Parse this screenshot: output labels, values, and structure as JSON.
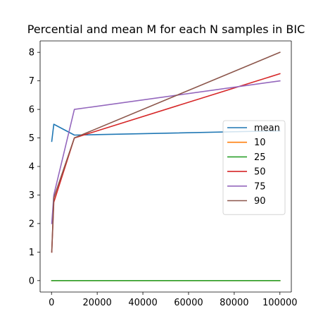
{
  "chart_data": {
    "type": "line",
    "title": "Percential and mean M for each N samples in BIC",
    "xlabel": "",
    "ylabel": "",
    "xlim": [
      -5000,
      105000
    ],
    "ylim": [
      -0.4,
      8.4
    ],
    "xticks": [
      0,
      20000,
      40000,
      60000,
      80000,
      100000
    ],
    "xtick_labels": [
      "0",
      "20000",
      "40000",
      "60000",
      "80000",
      "100000"
    ],
    "yticks": [
      0,
      1,
      2,
      3,
      4,
      5,
      6,
      7,
      8
    ],
    "ytick_labels": [
      "0",
      "1",
      "2",
      "3",
      "4",
      "5",
      "6",
      "7",
      "8"
    ],
    "grid": false,
    "legend_position": "center-right",
    "x": [
      100,
      1000,
      10000,
      100000
    ],
    "series": [
      {
        "name": "mean",
        "color": "#1f77b4",
        "values": [
          4.88,
          5.48,
          5.1,
          5.25
        ]
      },
      {
        "name": "10",
        "color": "#ff7f0e",
        "values": [
          0,
          0,
          0,
          0
        ]
      },
      {
        "name": "25",
        "color": "#2ca02c",
        "values": [
          0,
          0,
          0,
          0
        ]
      },
      {
        "name": "50",
        "color": "#d62728",
        "values": [
          1,
          2.75,
          5,
          7.25
        ]
      },
      {
        "name": "75",
        "color": "#9467bd",
        "values": [
          2,
          3,
          6,
          7
        ]
      },
      {
        "name": "90",
        "color": "#8c564b",
        "values": [
          1,
          2.9,
          5,
          8
        ]
      }
    ]
  }
}
